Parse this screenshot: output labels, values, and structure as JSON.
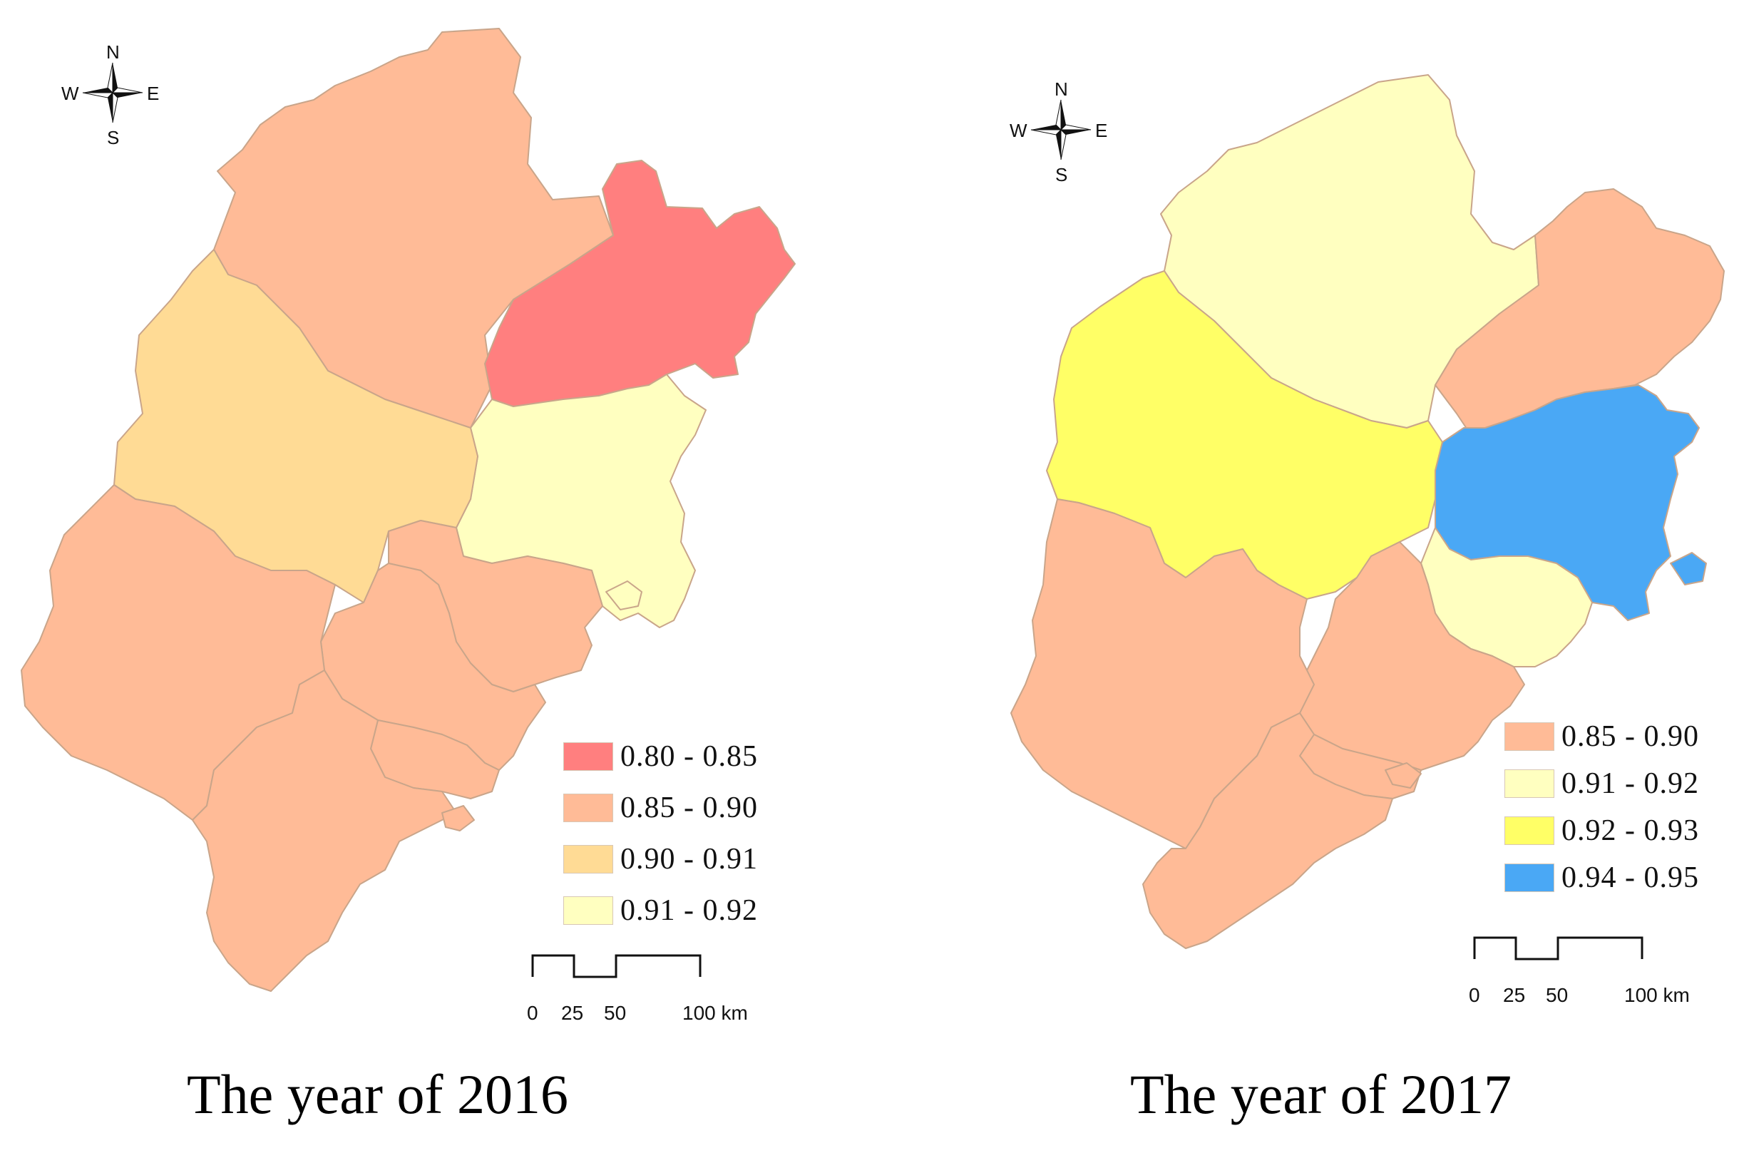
{
  "colors": {
    "c080_085": "#ff7f7f",
    "c085_090": "#ffbb97",
    "c090_091": "#ffdb95",
    "c091_092": "#ffffc0",
    "c092_093": "#ffff66",
    "c094_095": "#4aa8f5",
    "boundary": "#c9a58a"
  },
  "compass": {
    "n": "N",
    "s": "S",
    "e": "E",
    "w": "W"
  },
  "scale_bar": {
    "t0": "0",
    "t25": "25",
    "t50": "50",
    "t100": "100 km"
  },
  "map2016": {
    "title": "The year of 2016",
    "legend": [
      {
        "label": "0.80 - 0.85",
        "color": "#ff7f7f"
      },
      {
        "label": "0.85 - 0.90",
        "color": "#ffbb97"
      },
      {
        "label": "0.90 - 0.91",
        "color": "#ffdb95"
      },
      {
        "label": "0.91 - 0.92",
        "color": "#ffffc0"
      }
    ]
  },
  "map2017": {
    "title": "The year of 2017",
    "legend": [
      {
        "label": "0.85 - 0.90",
        "color": "#ffbb97"
      },
      {
        "label": "0.91 - 0.92",
        "color": "#ffffc0"
      },
      {
        "label": "0.92 - 0.93",
        "color": "#ffff66"
      },
      {
        "label": "0.94 - 0.95",
        "color": "#4aa8f5"
      }
    ]
  }
}
